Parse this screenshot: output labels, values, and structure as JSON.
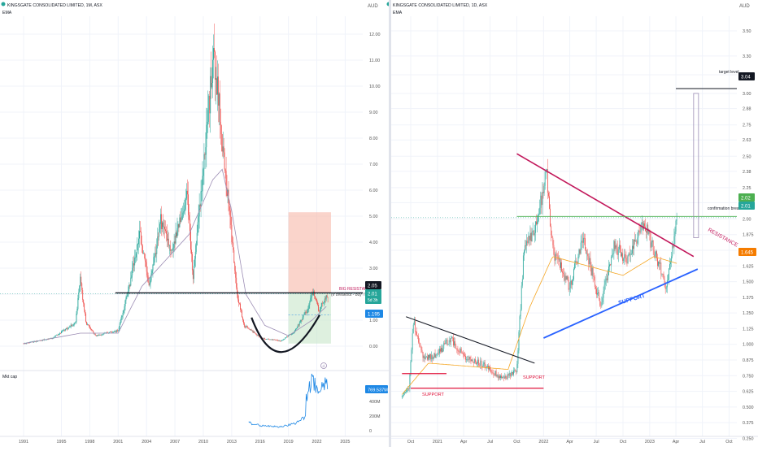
{
  "colors": {
    "bull": "#26a69a",
    "bear": "#ef5350",
    "ema_long": "#9c8db4",
    "ema_short": "#f5a623",
    "grid": "#f0f3fa",
    "axis_text": "#555",
    "dark_badge": "#131722",
    "support_red": "#e0143c",
    "resistance_red": "#c2185b",
    "support_blue": "#2962ff",
    "green_line": "#4caf50",
    "blue_badge": "#1e88e5",
    "orange_badge": "#f57c00",
    "risk_zone": "#f7b7a8",
    "reward_zone": "#c8e6c9"
  },
  "left_panel": {
    "title": "KINGSGATE CONSOLIDATED LIMITED, 1M, ASX",
    "indicator": "EMA",
    "currency": "AUD",
    "annotations": {
      "big_resistance": "BIG RESISTANCE",
      "breakout": "(If breakout - buy !!)"
    },
    "badges": {
      "resistance": "2.05",
      "price": "2.01",
      "countdown": "5d 3h",
      "target": "1.195"
    },
    "volume_label": "Mkt cap",
    "volume_badge": "769.537M",
    "chart_data": {
      "type": "candlestick",
      "title": "KINGSGATE CONSOLIDATED LIMITED, 1M, ASX",
      "xlabel": "",
      "ylabel": "AUD",
      "x_ticks": [
        "1991",
        "1995",
        "1998",
        "2001",
        "2004",
        "2007",
        "2010",
        "2013",
        "2016",
        "2019",
        "2022",
        "2025"
      ],
      "y_ticks": [
        "12.00",
        "11.00",
        "10.00",
        "9.00",
        "8.00",
        "7.00",
        "6.00",
        "5.00",
        "4.00",
        "3.00",
        "2.00",
        "1.00",
        "0.00"
      ],
      "ylim": [
        -0.1,
        12.3
      ],
      "grid": true,
      "price_path": [
        {
          "x": 1991.0,
          "y": 0.1
        },
        {
          "x": 1994.0,
          "y": 0.3
        },
        {
          "x": 1996.5,
          "y": 0.9
        },
        {
          "x": 1997.0,
          "y": 2.6
        },
        {
          "x": 1997.6,
          "y": 0.9
        },
        {
          "x": 1998.6,
          "y": 0.4
        },
        {
          "x": 2001.0,
          "y": 0.6
        },
        {
          "x": 2002.3,
          "y": 2.5
        },
        {
          "x": 2003.3,
          "y": 4.3
        },
        {
          "x": 2004.3,
          "y": 2.3
        },
        {
          "x": 2005.5,
          "y": 4.8
        },
        {
          "x": 2006.6,
          "y": 3.5
        },
        {
          "x": 2008.3,
          "y": 5.8
        },
        {
          "x": 2008.9,
          "y": 2.6
        },
        {
          "x": 2010.5,
          "y": 8.8
        },
        {
          "x": 2011.1,
          "y": 11.4
        },
        {
          "x": 2012.5,
          "y": 6.0
        },
        {
          "x": 2013.6,
          "y": 2.0
        },
        {
          "x": 2014.3,
          "y": 0.8
        },
        {
          "x": 2016.2,
          "y": 0.3
        },
        {
          "x": 2018.2,
          "y": 0.2
        },
        {
          "x": 2019.6,
          "y": 0.55
        },
        {
          "x": 2021.0,
          "y": 1.4
        },
        {
          "x": 2021.6,
          "y": 2.1
        },
        {
          "x": 2022.2,
          "y": 1.4
        },
        {
          "x": 2023.2,
          "y": 2.01
        }
      ],
      "ema_path": [
        {
          "x": 1991.0,
          "y": 0.1
        },
        {
          "x": 1997.0,
          "y": 0.5
        },
        {
          "x": 2001.0,
          "y": 0.5
        },
        {
          "x": 2003.5,
          "y": 2.3
        },
        {
          "x": 2006.0,
          "y": 3.3
        },
        {
          "x": 2008.5,
          "y": 4.3
        },
        {
          "x": 2011.0,
          "y": 6.4
        },
        {
          "x": 2012.0,
          "y": 6.8
        },
        {
          "x": 2013.0,
          "y": 5.2
        },
        {
          "x": 2014.5,
          "y": 2.0
        },
        {
          "x": 2016.5,
          "y": 0.8
        },
        {
          "x": 2019.0,
          "y": 0.4
        },
        {
          "x": 2021.5,
          "y": 1.0
        },
        {
          "x": 2023.2,
          "y": 1.6
        }
      ],
      "resistance_level": 2.05,
      "last_price": 2.01,
      "target_level": 1.195,
      "risk_zone": {
        "x_from": 2019.0,
        "x_to": 2023.5,
        "y_from": 2.05,
        "y_to": 5.15
      },
      "reward_zone": {
        "x_from": 2019.0,
        "x_to": 2023.5,
        "y_from": 0.1,
        "y_to": 2.05
      },
      "mktcap_ticks": [
        "400M",
        "200M",
        "0"
      ]
    }
  },
  "right_panel": {
    "title": "KINGSGATE CONSOLIDATED LIMITED, 1D, ASX",
    "indicator": "EMA",
    "currency": "AUD",
    "annotations": {
      "target_level": "target level",
      "confirmation_break": "confirmation break",
      "resistance": "RESISTANCE",
      "support_upper": "SUPPORT",
      "support_lower": "SUPPORT",
      "support_left": "SUPPORT"
    },
    "badges": {
      "target": "3.04",
      "resistance": "2.02",
      "price": "2.01",
      "ema": "1.645"
    },
    "chart_data": {
      "type": "candlestick",
      "title": "KINGSGATE CONSOLIDATED LIMITED, 1D, ASX",
      "xlabel": "",
      "ylabel": "AUD",
      "x_ticks": [
        "Oct",
        "2021",
        "Apr",
        "Jul",
        "Oct",
        "2022",
        "Apr",
        "Jul",
        "Oct",
        "2023",
        "Apr",
        "Jul",
        "Oct"
      ],
      "y_ticks": [
        "3.50",
        "3.30",
        "3.15",
        "3.00",
        "2.88",
        "2.75",
        "2.63",
        "2.50",
        "2.38",
        "2.25",
        "2.13",
        "2.00",
        "1.875",
        "1.750",
        "1.625",
        "1.500",
        "1.375",
        "1.250",
        "1.125",
        "1.000",
        "0.875",
        "0.750",
        "0.625",
        "0.500",
        "0.375",
        "0.250"
      ],
      "grid": true,
      "price_path": [
        {
          "x": "2020-09-01",
          "y": 0.58
        },
        {
          "x": "2020-09-25",
          "y": 0.65
        },
        {
          "x": "2020-10-10",
          "y": 1.18
        },
        {
          "x": "2020-11-15",
          "y": 0.88
        },
        {
          "x": "2021-01-01",
          "y": 0.92
        },
        {
          "x": "2021-02-15",
          "y": 1.05
        },
        {
          "x": "2021-04-01",
          "y": 0.9
        },
        {
          "x": "2021-06-01",
          "y": 0.85
        },
        {
          "x": "2021-08-15",
          "y": 0.72
        },
        {
          "x": "2021-10-01",
          "y": 0.8
        },
        {
          "x": "2021-10-25",
          "y": 1.75
        },
        {
          "x": "2021-12-10",
          "y": 1.95
        },
        {
          "x": "2022-01-10",
          "y": 2.4
        },
        {
          "x": "2022-02-01",
          "y": 1.75
        },
        {
          "x": "2022-04-01",
          "y": 1.45
        },
        {
          "x": "2022-05-15",
          "y": 1.85
        },
        {
          "x": "2022-07-15",
          "y": 1.32
        },
        {
          "x": "2022-09-01",
          "y": 1.8
        },
        {
          "x": "2022-10-15",
          "y": 1.65
        },
        {
          "x": "2022-12-10",
          "y": 1.98
        },
        {
          "x": "2023-02-01",
          "y": 1.65
        },
        {
          "x": "2023-03-01",
          "y": 1.45
        },
        {
          "x": "2023-04-05",
          "y": 2.01
        }
      ],
      "ema_path": [
        {
          "x": "2020-09-01",
          "y": 0.6
        },
        {
          "x": "2020-12-01",
          "y": 0.85
        },
        {
          "x": "2021-09-01",
          "y": 0.8
        },
        {
          "x": "2021-11-15",
          "y": 1.3
        },
        {
          "x": "2022-02-01",
          "y": 1.7
        },
        {
          "x": "2022-10-01",
          "y": 1.55
        },
        {
          "x": "2023-01-15",
          "y": 1.7
        },
        {
          "x": "2023-04-05",
          "y": 1.645
        }
      ],
      "target_level": 3.04,
      "confirmation_level": 2.02,
      "last_price": 2.01,
      "ema_value": 1.645,
      "resistance_line": [
        {
          "x": "2021-10-01",
          "y": 2.52
        },
        {
          "x": "2023-06-01",
          "y": 1.7
        }
      ],
      "support_line": [
        {
          "x": "2022-01-01",
          "y": 1.05
        },
        {
          "x": "2023-06-15",
          "y": 1.6
        }
      ],
      "lower_resistance_line": [
        {
          "x": "2020-09-15",
          "y": 1.22
        },
        {
          "x": "2021-12-01",
          "y": 0.85
        }
      ],
      "support_level": 0.65
    }
  }
}
